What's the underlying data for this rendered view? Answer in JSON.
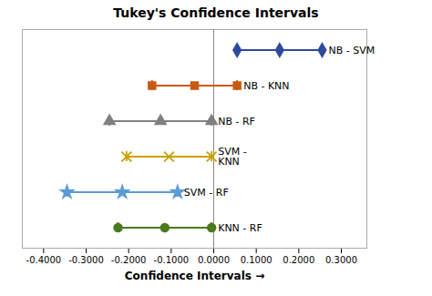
{
  "chart_data": {
    "type": "interval",
    "title": "Tukey's  Confidence Intervals",
    "xlabel": "Confidence Intervals",
    "series": [
      {
        "name": "NB - SVM",
        "low": 0.055,
        "center": 0.155,
        "high": 0.255,
        "color": "#2E4A9E",
        "marker": "diamond"
      },
      {
        "name": "NB - KNN",
        "low": -0.145,
        "center": -0.045,
        "high": 0.055,
        "color": "#C85A10",
        "marker": "square"
      },
      {
        "name": "NB - RF",
        "low": -0.245,
        "center": -0.125,
        "high": -0.005,
        "color": "#808080",
        "marker": "triangle"
      },
      {
        "name": "SVM -\nKNN",
        "low": -0.205,
        "center": -0.105,
        "high": -0.005,
        "color": "#C8A000",
        "marker": "times"
      },
      {
        "name": "SVM - RF",
        "low": -0.345,
        "center": -0.215,
        "high": -0.085,
        "color": "#5B9BD5",
        "marker": "star"
      },
      {
        "name": "KNN - RF",
        "low": -0.225,
        "center": -0.115,
        "high": -0.005,
        "color": "#4A7A1E",
        "marker": "circle"
      }
    ],
    "vline": 0,
    "xlim": [
      -0.45,
      0.36
    ],
    "xticks": [
      {
        "value": -0.4,
        "label": "-0.4000"
      },
      {
        "value": -0.3,
        "label": "-0.3000"
      },
      {
        "value": -0.2,
        "label": "-0.2000"
      },
      {
        "value": -0.1,
        "label": "-0.1000"
      },
      {
        "value": 0.0,
        "label": "0.0000"
      },
      {
        "value": 0.1,
        "label": "0.1000"
      },
      {
        "value": 0.2,
        "label": "0.2000"
      },
      {
        "value": 0.3,
        "label": "0.3000"
      }
    ],
    "tick_labels": "x",
    "grid": false
  }
}
